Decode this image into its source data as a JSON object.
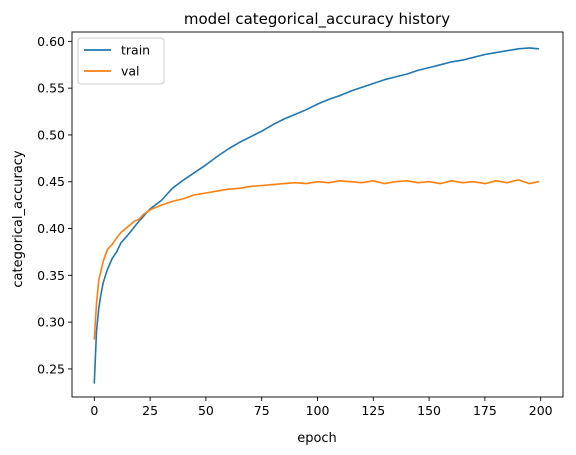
{
  "chart_data": {
    "type": "line",
    "title": "model categorical_accuracy history",
    "xlabel": "epoch",
    "ylabel": "categorical_accuracy",
    "xlim": [
      -10,
      210
    ],
    "ylim": [
      0.22,
      0.61
    ],
    "xticks": [
      0,
      25,
      50,
      75,
      100,
      125,
      150,
      175,
      200
    ],
    "yticks": [
      0.25,
      0.3,
      0.35,
      0.4,
      0.45,
      0.5,
      0.55,
      0.6
    ],
    "ytick_labels": [
      "0.25",
      "0.30",
      "0.35",
      "0.40",
      "0.45",
      "0.50",
      "0.55",
      "0.60"
    ],
    "grid": false,
    "legend_position": "top-left",
    "series": [
      {
        "name": "train",
        "color": "#1f77b4",
        "x": [
          0,
          1,
          2,
          3,
          4,
          5,
          6,
          8,
          10,
          12,
          15,
          18,
          20,
          22,
          25,
          30,
          35,
          40,
          45,
          50,
          55,
          60,
          65,
          70,
          75,
          80,
          85,
          90,
          95,
          100,
          105,
          110,
          115,
          120,
          125,
          130,
          135,
          140,
          145,
          150,
          155,
          160,
          165,
          170,
          175,
          180,
          185,
          190,
          195,
          199
        ],
        "y": [
          0.235,
          0.29,
          0.315,
          0.33,
          0.342,
          0.35,
          0.357,
          0.368,
          0.375,
          0.385,
          0.393,
          0.402,
          0.408,
          0.413,
          0.421,
          0.43,
          0.443,
          0.452,
          0.46,
          0.468,
          0.477,
          0.485,
          0.492,
          0.498,
          0.504,
          0.511,
          0.517,
          0.522,
          0.527,
          0.533,
          0.538,
          0.542,
          0.547,
          0.551,
          0.555,
          0.559,
          0.562,
          0.565,
          0.569,
          0.572,
          0.575,
          0.578,
          0.58,
          0.583,
          0.586,
          0.588,
          0.59,
          0.592,
          0.593,
          0.592
        ]
      },
      {
        "name": "val",
        "color": "#ff7f0e",
        "x": [
          0,
          1,
          2,
          3,
          4,
          5,
          6,
          8,
          10,
          12,
          15,
          18,
          20,
          22,
          25,
          30,
          35,
          40,
          45,
          50,
          55,
          60,
          65,
          70,
          75,
          80,
          85,
          90,
          95,
          100,
          105,
          110,
          115,
          120,
          125,
          130,
          135,
          140,
          145,
          150,
          155,
          160,
          165,
          170,
          175,
          180,
          185,
          190,
          195,
          199
        ],
        "y": [
          0.282,
          0.32,
          0.345,
          0.355,
          0.365,
          0.372,
          0.378,
          0.383,
          0.39,
          0.396,
          0.402,
          0.408,
          0.41,
          0.415,
          0.42,
          0.425,
          0.429,
          0.432,
          0.436,
          0.438,
          0.44,
          0.442,
          0.443,
          0.445,
          0.446,
          0.447,
          0.448,
          0.449,
          0.448,
          0.45,
          0.449,
          0.451,
          0.45,
          0.449,
          0.451,
          0.448,
          0.45,
          0.451,
          0.449,
          0.45,
          0.448,
          0.451,
          0.449,
          0.45,
          0.448,
          0.451,
          0.449,
          0.452,
          0.448,
          0.45
        ]
      }
    ]
  }
}
